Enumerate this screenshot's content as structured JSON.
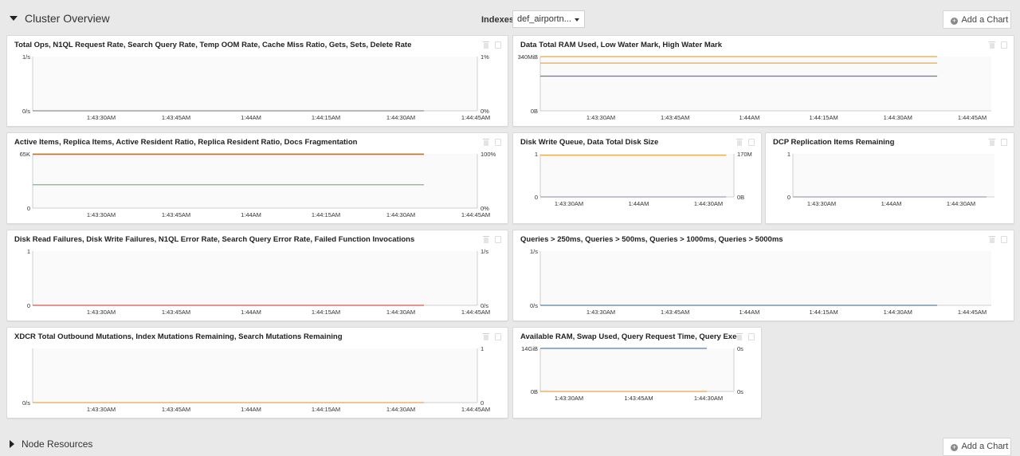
{
  "section": {
    "title": "Cluster Overview"
  },
  "indexes": {
    "label": "Indexes",
    "selected": "def_airportn..."
  },
  "add_chart_label": "Add a Chart",
  "footer": {
    "title": "Node Resources",
    "add_chart_label": "Add a Chart"
  },
  "colors": {
    "orange": "#e8a84c",
    "blue": "#5b7fa8",
    "green": "#7cb97c",
    "red": "#d9534f",
    "gray": "#9aa3ad"
  },
  "charts": [
    {
      "title": "Total Ops, N1QL Request Rate, Search Query Rate, Temp OOM Rate, Cache Miss Ratio, Gets, Sets, Delete Rate",
      "y_left_ticks": [
        "1/s",
        "0/s"
      ],
      "y_right_ticks": [
        "1%",
        "0%"
      ],
      "x_ticks": [
        "1:43:30AM",
        "1:43:45AM",
        "1:44AM",
        "1:44:15AM",
        "1:44:30AM",
        "1:44:45AM"
      ],
      "series": [
        {
          "color": "#d9534f",
          "level": 0.0
        },
        {
          "color": "#9aa3ad",
          "level": 0.0
        }
      ]
    },
    {
      "title": "Data Total RAM Used, Low Water Mark, High Water Mark",
      "y_left_ticks": [
        "340MiB",
        "0B"
      ],
      "y_right_ticks": [],
      "x_ticks": [
        "1:43:30AM",
        "1:43:45AM",
        "1:44AM",
        "1:44:15AM",
        "1:44:30AM",
        "1:44:45AM"
      ],
      "series": [
        {
          "color": "#e8a84c",
          "level": 1.0
        },
        {
          "color": "#e8a84c",
          "level": 0.88
        },
        {
          "color": "#5b7fa8",
          "level": 0.64
        }
      ]
    },
    {
      "title": "Active Items, Replica Items, Active Resident Ratio, Replica Resident Ratio, Docs Fragmentation",
      "y_left_ticks": [
        "65K",
        "0"
      ],
      "y_right_ticks": [
        "100%",
        "0%"
      ],
      "x_ticks": [
        "1:43:30AM",
        "1:43:45AM",
        "1:44AM",
        "1:44:15AM",
        "1:44:30AM",
        "1:44:45AM"
      ],
      "series": [
        {
          "color": "#e8a84c",
          "level": 1.0
        },
        {
          "color": "#d9534f",
          "level": 0.99
        },
        {
          "color": "#7cb97c",
          "level": 0.43
        }
      ]
    },
    {
      "title": "Disk Write Queue, Data Total Disk Size",
      "y_left_ticks": [
        "1",
        "0"
      ],
      "y_right_ticks": [
        "170M",
        "0B"
      ],
      "x_ticks": [
        "1:43:30AM",
        "1:44AM",
        "1:44:30AM"
      ],
      "series": [
        {
          "color": "#e8a84c",
          "level": 0.97
        },
        {
          "color": "#9aa3ad",
          "level": 0.0
        }
      ]
    },
    {
      "title": "DCP Replication Items Remaining",
      "y_left_ticks": [
        "1",
        "0"
      ],
      "y_right_ticks": [],
      "x_ticks": [
        "1:43:30AM",
        "1:44AM",
        "1:44:30AM"
      ],
      "series": [
        {
          "color": "#9aa3ad",
          "level": 0.0
        }
      ]
    },
    {
      "title": "Disk Read Failures, Disk Write Failures, N1QL Error Rate, Search Query Error Rate, Failed Function Invocations",
      "y_left_ticks": [
        "1",
        "0"
      ],
      "y_right_ticks": [
        "1/s",
        "0/s"
      ],
      "x_ticks": [
        "1:43:30AM",
        "1:43:45AM",
        "1:44AM",
        "1:44:15AM",
        "1:44:30AM",
        "1:44:45AM"
      ],
      "series": [
        {
          "color": "#d9534f",
          "level": 0.0
        }
      ]
    },
    {
      "title": "Queries > 250ms, Queries > 500ms, Queries > 1000ms, Queries > 5000ms",
      "y_left_ticks": [
        "1/s",
        "0/s"
      ],
      "y_right_ticks": [],
      "x_ticks": [
        "1:43:30AM",
        "1:43:45AM",
        "1:44AM",
        "1:44:15AM",
        "1:44:30AM",
        "1:44:45AM"
      ],
      "series": [
        {
          "color": "#5b7fa8",
          "level": 0.0
        }
      ]
    },
    {
      "title": "XDCR Total Outbound Mutations, Index Mutations Remaining, Search Mutations Remaining",
      "y_left_ticks": [
        "0/s"
      ],
      "y_right_ticks": [
        "1",
        "0"
      ],
      "x_ticks": [
        "1:43:30AM",
        "1:43:45AM",
        "1:44AM",
        "1:44:15AM",
        "1:44:30AM",
        "1:44:45AM"
      ],
      "series": [
        {
          "color": "#e8a84c",
          "level": 0.0
        }
      ]
    },
    {
      "title": "Available RAM, Swap Used, Query Request Time, Query Executio...",
      "y_left_ticks": [
        "14GiB",
        "0B"
      ],
      "y_right_ticks": [
        "0s",
        "0s"
      ],
      "x_ticks": [
        "1:43:30AM",
        "1:43:45AM",
        "1:44:30AM"
      ],
      "series": [
        {
          "color": "#5b7fa8",
          "level": 1.0
        },
        {
          "color": "#e8a84c",
          "level": 0.0
        }
      ]
    }
  ]
}
